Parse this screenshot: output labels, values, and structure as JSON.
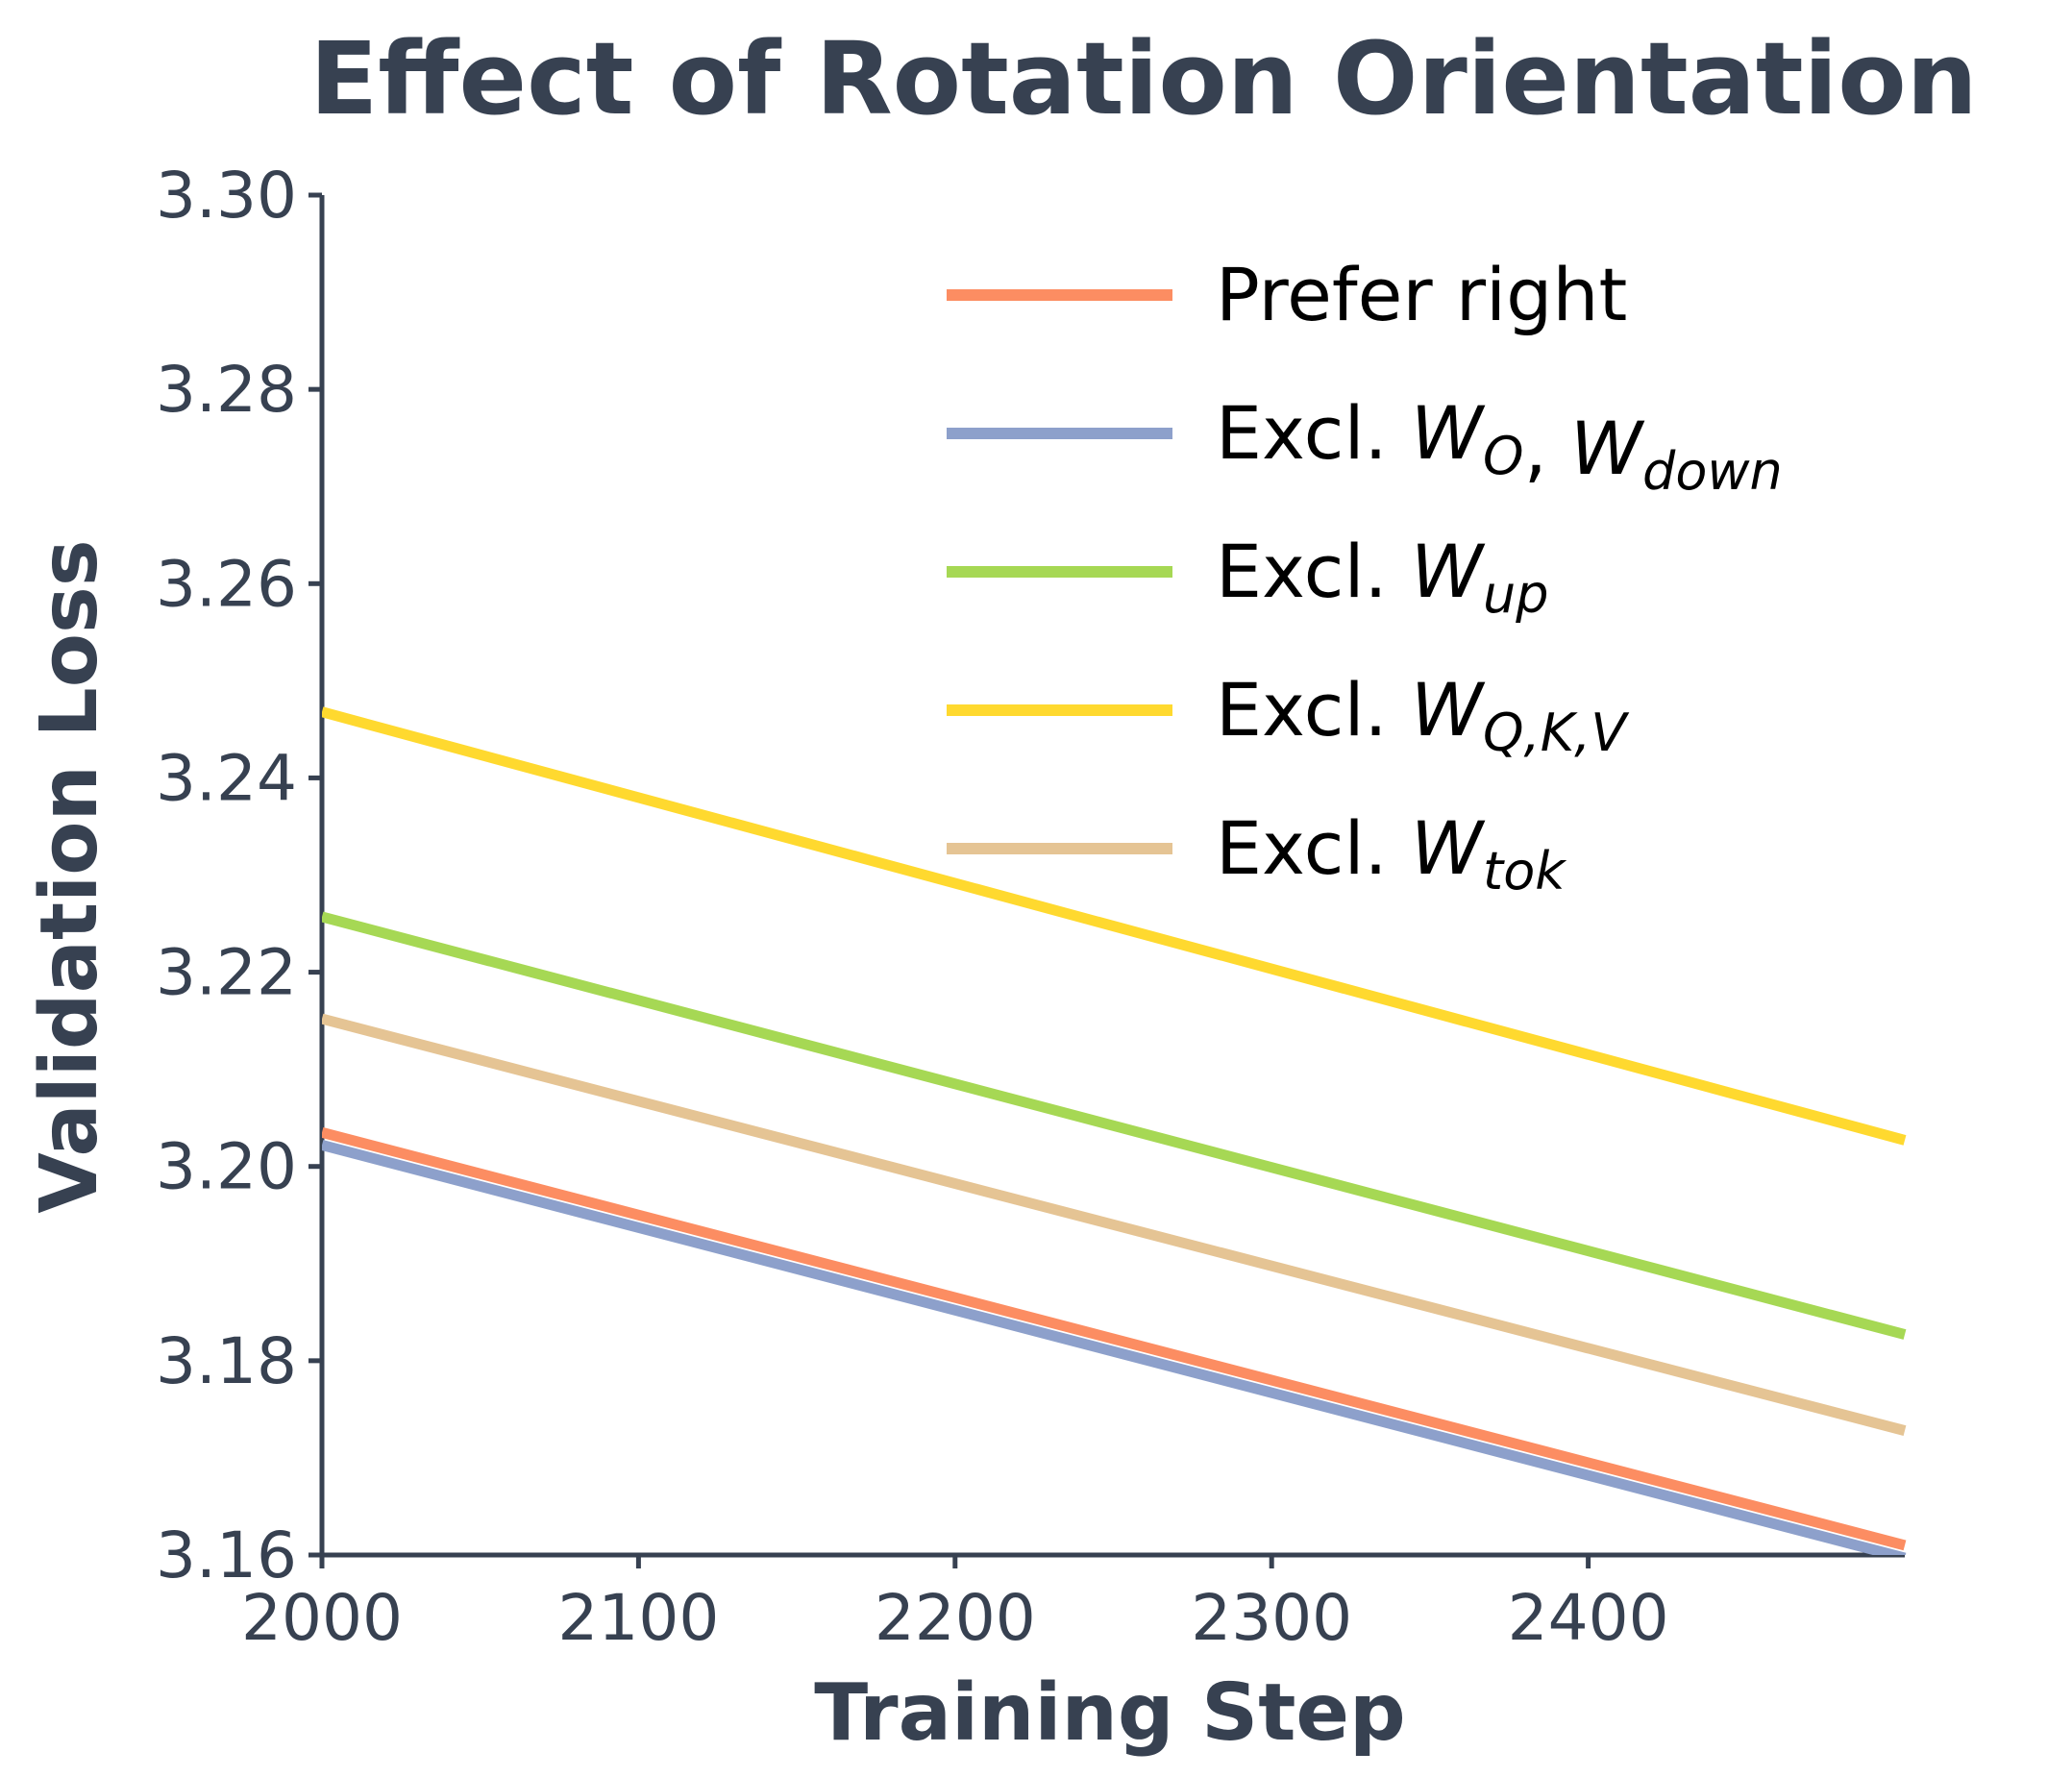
{
  "chart_data": {
    "type": "line",
    "title": "Effect of Rotation Orientation",
    "xlabel": "Training Step",
    "ylabel": "Validation Loss",
    "xlim": [
      2000,
      2500
    ],
    "ylim": [
      3.16,
      3.3
    ],
    "xticks": [
      "2000",
      "2100",
      "2200",
      "2300",
      "2400"
    ],
    "yticks": [
      "3.16",
      "3.18",
      "3.20",
      "3.22",
      "3.24",
      "3.26",
      "3.28",
      "3.30"
    ],
    "grid": false,
    "legend_position": "top-right",
    "series": [
      {
        "name": "Prefer right",
        "legend_parts": [
          {
            "text": "Prefer right",
            "sub": ""
          }
        ],
        "color": "#fc8d62",
        "x": [
          2000,
          2500
        ],
        "y": [
          3.2035,
          3.161
        ]
      },
      {
        "name": "Excl. W_O, W_down",
        "legend_parts": [
          {
            "text": "Excl. ",
            "sub": ""
          },
          {
            "text": "W",
            "sub": "O",
            "italic": true
          },
          {
            "text": ", ",
            "sub": ""
          },
          {
            "text": "W",
            "sub": "down",
            "italic": true
          }
        ],
        "color": "#8da0cb",
        "x": [
          2000,
          2500
        ],
        "y": [
          3.2022,
          3.1597
        ]
      },
      {
        "name": "Excl. W_up",
        "legend_parts": [
          {
            "text": "Excl. ",
            "sub": ""
          },
          {
            "text": "W",
            "sub": "up",
            "italic": true
          }
        ],
        "color": "#a6d854",
        "x": [
          2000,
          2500
        ],
        "y": [
          3.2257,
          3.1827
        ]
      },
      {
        "name": "Excl. W_Q,K,V",
        "legend_parts": [
          {
            "text": "Excl. ",
            "sub": ""
          },
          {
            "text": "W",
            "sub": "Q,K,V",
            "italic": true
          }
        ],
        "color": "#ffd92f",
        "x": [
          2000,
          2500
        ],
        "y": [
          3.2468,
          3.2027
        ]
      },
      {
        "name": "Excl. W_tok",
        "legend_parts": [
          {
            "text": "Excl. ",
            "sub": ""
          },
          {
            "text": "W",
            "sub": "tok",
            "italic": true
          }
        ],
        "color": "#e5c494",
        "x": [
          2000,
          2500
        ],
        "y": [
          3.2152,
          3.1728
        ]
      }
    ],
    "axis_color": "#374151"
  }
}
